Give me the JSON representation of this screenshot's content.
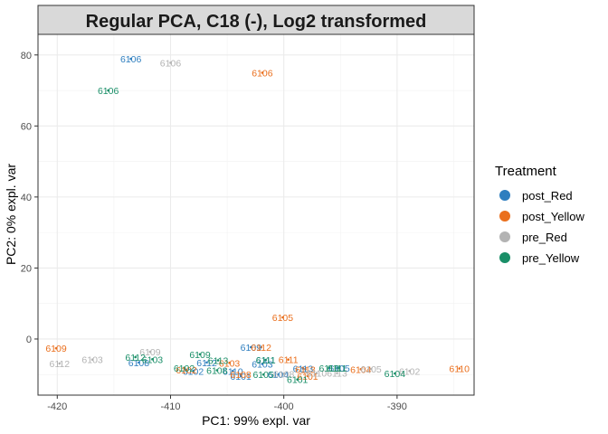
{
  "chart_data": {
    "type": "scatter",
    "title": "Regular PCA, C18 (-), Log2 transformed",
    "xlabel": "PC1: 99% expl. var",
    "ylabel": "PC2: 0% expl. var",
    "xlim": [
      -421.7,
      -383.2
    ],
    "ylim": [
      -15.8,
      85.8
    ],
    "x_ticks": [
      -420,
      -410,
      -400,
      -390
    ],
    "y_ticks": [
      0,
      20,
      40,
      60,
      80
    ],
    "grid": true,
    "legend": {
      "title": "Treatment",
      "position": "right"
    },
    "series": [
      {
        "name": "post_Red",
        "color": "#2e7ebf",
        "points": [
          {
            "x": -413.5,
            "y": 78.9,
            "label": "6106"
          },
          {
            "x": -402.9,
            "y": -2.3,
            "label": "6109"
          },
          {
            "x": -412.8,
            "y": -6.6,
            "label": "6108"
          },
          {
            "x": -408.0,
            "y": -9.0,
            "label": "6102"
          },
          {
            "x": -406.8,
            "y": -6.6,
            "label": "6112"
          },
          {
            "x": -404.5,
            "y": -9.0,
            "label": "6110"
          },
          {
            "x": -403.8,
            "y": -10.4,
            "label": "6101"
          },
          {
            "x": -401.9,
            "y": -7.0,
            "label": "6103"
          },
          {
            "x": -401.6,
            "y": -5.9,
            "label": "6111"
          },
          {
            "x": -398.3,
            "y": -8.3,
            "label": "6113"
          },
          {
            "x": -395.1,
            "y": -8.1,
            "label": "6105"
          },
          {
            "x": -400.5,
            "y": -10.0,
            "label": "6104"
          }
        ]
      },
      {
        "name": "post_Yellow",
        "color": "#ea6f1d",
        "points": [
          {
            "x": -401.9,
            "y": 75.0,
            "label": "6106"
          },
          {
            "x": -400.1,
            "y": 6.1,
            "label": "6105"
          },
          {
            "x": -420.1,
            "y": -2.6,
            "label": "6109"
          },
          {
            "x": -402.0,
            "y": -2.3,
            "label": "6112"
          },
          {
            "x": -404.8,
            "y": -6.7,
            "label": "6103"
          },
          {
            "x": -408.6,
            "y": -8.7,
            "label": "6102"
          },
          {
            "x": -403.8,
            "y": -9.9,
            "label": "6108"
          },
          {
            "x": -399.6,
            "y": -5.8,
            "label": "6111"
          },
          {
            "x": -398.1,
            "y": -8.5,
            "label": "6113"
          },
          {
            "x": -397.9,
            "y": -10.4,
            "label": "6101"
          },
          {
            "x": -393.2,
            "y": -8.5,
            "label": "6104"
          },
          {
            "x": -384.5,
            "y": -8.3,
            "label": "6110"
          }
        ]
      },
      {
        "name": "pre_Red",
        "color": "#b3b3b3",
        "points": [
          {
            "x": -410.0,
            "y": 77.8,
            "label": "6106"
          },
          {
            "x": -419.8,
            "y": -6.9,
            "label": "6112"
          },
          {
            "x": -416.9,
            "y": -5.8,
            "label": "6103"
          },
          {
            "x": -411.8,
            "y": -3.6,
            "label": "6109"
          },
          {
            "x": -400.0,
            "y": -9.8,
            "label": "6108"
          },
          {
            "x": -397.1,
            "y": -9.6,
            "label": "6110"
          },
          {
            "x": -395.3,
            "y": -9.6,
            "label": "6113"
          },
          {
            "x": -392.3,
            "y": -8.4,
            "label": "6105"
          },
          {
            "x": -388.9,
            "y": -9.0,
            "label": "6102"
          }
        ]
      },
      {
        "name": "pre_Yellow",
        "color": "#1a8f68",
        "points": [
          {
            "x": -415.5,
            "y": 70.0,
            "label": "6106"
          },
          {
            "x": -413.1,
            "y": -5.1,
            "label": "6112"
          },
          {
            "x": -411.6,
            "y": -5.7,
            "label": "6103"
          },
          {
            "x": -407.4,
            "y": -4.3,
            "label": "6109"
          },
          {
            "x": -405.8,
            "y": -6.0,
            "label": "6113"
          },
          {
            "x": -408.8,
            "y": -8.1,
            "label": "6102"
          },
          {
            "x": -405.9,
            "y": -8.8,
            "label": "6108"
          },
          {
            "x": -401.6,
            "y": -5.9,
            "label": "6111"
          },
          {
            "x": -396.0,
            "y": -8.1,
            "label": "6110"
          },
          {
            "x": -395.3,
            "y": -8.2,
            "label": "6111"
          },
          {
            "x": -401.8,
            "y": -10.0,
            "label": "6105"
          },
          {
            "x": -398.8,
            "y": -11.4,
            "label": "6101"
          },
          {
            "x": -390.2,
            "y": -9.7,
            "label": "6104"
          }
        ]
      }
    ]
  }
}
